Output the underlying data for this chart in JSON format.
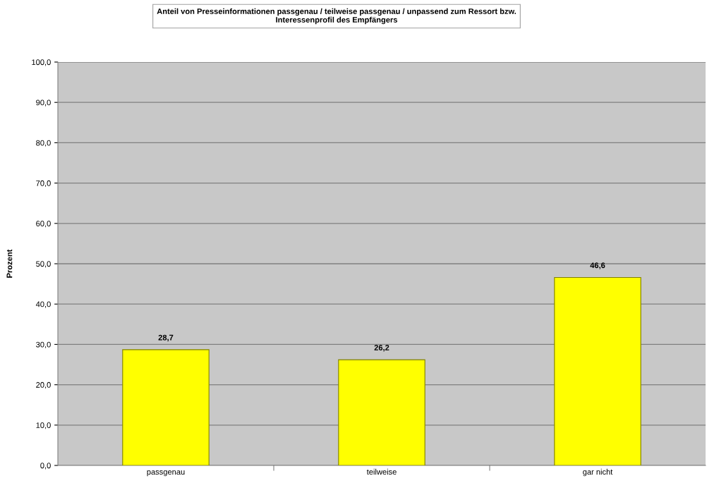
{
  "chart_data": {
    "type": "bar",
    "title": "Anteil von Presseinformationen passgenau / teilweise passgenau / unpassend zum Ressort bzw.\nInteressenprofil des Empfängers",
    "ylabel": "Prozent",
    "categories": [
      "passgenau",
      "teilweise",
      "gar nicht"
    ],
    "values": [
      28.7,
      26.2,
      46.6
    ],
    "value_labels": [
      "28,7",
      "26,2",
      "46,6"
    ],
    "color": "#ffff00",
    "ylim": [
      0,
      100
    ],
    "yticks": [
      {
        "value": 0,
        "label": "0,0"
      },
      {
        "value": 10,
        "label": "10,0"
      },
      {
        "value": 20,
        "label": "20,0"
      },
      {
        "value": 30,
        "label": "30,0"
      },
      {
        "value": 40,
        "label": "40,0"
      },
      {
        "value": 50,
        "label": "50,0"
      },
      {
        "value": 60,
        "label": "60,0"
      },
      {
        "value": 70,
        "label": "70,0"
      },
      {
        "value": 80,
        "label": "80,0"
      },
      {
        "value": 90,
        "label": "90,0"
      },
      {
        "value": 100,
        "label": "100,0"
      }
    ],
    "grid": "y",
    "legend": false
  }
}
